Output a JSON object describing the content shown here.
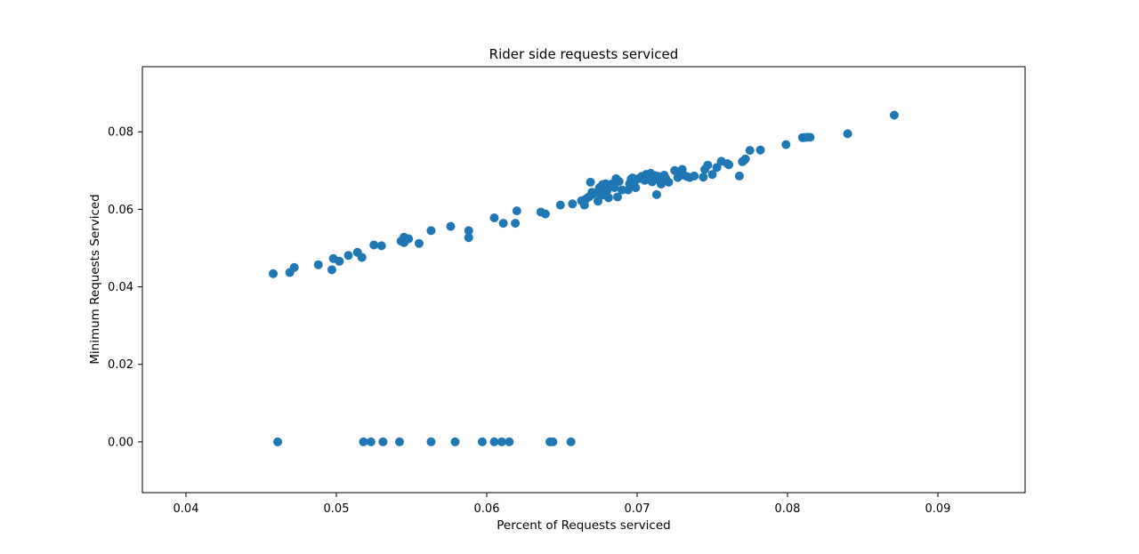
{
  "chart_data": {
    "type": "scatter",
    "title": "Rider side requests serviced",
    "xlabel": "Percent of Requests serviced",
    "ylabel": "Minimum Requests Serviced",
    "xlim": [
      0.0371,
      0.0958
    ],
    "ylim": [
      -0.0131,
      0.0968
    ],
    "xticks": [
      "0.04",
      "0.05",
      "0.06",
      "0.07",
      "0.08",
      "0.09"
    ],
    "yticks": [
      "0.00",
      "0.02",
      "0.04",
      "0.06",
      "0.08"
    ],
    "grid": false,
    "color": "#1f77b4",
    "points": [
      [
        0.0458,
        0.0434
      ],
      [
        0.0469,
        0.0437
      ],
      [
        0.0472,
        0.045
      ],
      [
        0.0488,
        0.0457
      ],
      [
        0.0497,
        0.0444
      ],
      [
        0.0498,
        0.0473
      ],
      [
        0.0502,
        0.0466
      ],
      [
        0.0508,
        0.0481
      ],
      [
        0.0514,
        0.0489
      ],
      [
        0.0517,
        0.0476
      ],
      [
        0.0525,
        0.0508
      ],
      [
        0.053,
        0.0506
      ],
      [
        0.0543,
        0.0518
      ],
      [
        0.0545,
        0.0528
      ],
      [
        0.0545,
        0.0514
      ],
      [
        0.0548,
        0.0524
      ],
      [
        0.0555,
        0.0512
      ],
      [
        0.0563,
        0.0545
      ],
      [
        0.0576,
        0.0556
      ],
      [
        0.0588,
        0.0545
      ],
      [
        0.0588,
        0.0527
      ],
      [
        0.0605,
        0.0578
      ],
      [
        0.0611,
        0.0564
      ],
      [
        0.0619,
        0.0564
      ],
      [
        0.062,
        0.0596
      ],
      [
        0.0636,
        0.0593
      ],
      [
        0.0639,
        0.0588
      ],
      [
        0.0649,
        0.0611
      ],
      [
        0.0657,
        0.0614
      ],
      [
        0.0663,
        0.0622
      ],
      [
        0.0665,
        0.0611
      ],
      [
        0.0666,
        0.0627
      ],
      [
        0.0668,
        0.0632
      ],
      [
        0.0669,
        0.067
      ],
      [
        0.067,
        0.0638
      ],
      [
        0.067,
        0.0644
      ],
      [
        0.0673,
        0.0643
      ],
      [
        0.0674,
        0.0621
      ],
      [
        0.0675,
        0.0656
      ],
      [
        0.0677,
        0.0637
      ],
      [
        0.0677,
        0.0664
      ],
      [
        0.0679,
        0.0666
      ],
      [
        0.068,
        0.0648
      ],
      [
        0.0681,
        0.063
      ],
      [
        0.0683,
        0.0665
      ],
      [
        0.0685,
        0.0656
      ],
      [
        0.0686,
        0.0679
      ],
      [
        0.0687,
        0.0632
      ],
      [
        0.0688,
        0.0672
      ],
      [
        0.069,
        0.065
      ],
      [
        0.0694,
        0.065
      ],
      [
        0.0695,
        0.0666
      ],
      [
        0.0696,
        0.0678
      ],
      [
        0.0697,
        0.066
      ],
      [
        0.0697,
        0.0681
      ],
      [
        0.0698,
        0.067
      ],
      [
        0.0699,
        0.0656
      ],
      [
        0.07,
        0.0678
      ],
      [
        0.0702,
        0.068
      ],
      [
        0.0703,
        0.0685
      ],
      [
        0.0705,
        0.0675
      ],
      [
        0.0706,
        0.069
      ],
      [
        0.0707,
        0.0681
      ],
      [
        0.0708,
        0.0677
      ],
      [
        0.0709,
        0.0693
      ],
      [
        0.071,
        0.0671
      ],
      [
        0.0711,
        0.0683
      ],
      [
        0.0712,
        0.0687
      ],
      [
        0.0713,
        0.0638
      ],
      [
        0.0714,
        0.0685
      ],
      [
        0.0715,
        0.0674
      ],
      [
        0.0716,
        0.0665
      ],
      [
        0.0718,
        0.0688
      ],
      [
        0.0719,
        0.068
      ],
      [
        0.0721,
        0.067
      ],
      [
        0.0725,
        0.07
      ],
      [
        0.0727,
        0.0682
      ],
      [
        0.0728,
        0.0691
      ],
      [
        0.073,
        0.0703
      ],
      [
        0.0731,
        0.0688
      ],
      [
        0.0733,
        0.0685
      ],
      [
        0.0735,
        0.0682
      ],
      [
        0.0738,
        0.0686
      ],
      [
        0.0744,
        0.0683
      ],
      [
        0.0745,
        0.0703
      ],
      [
        0.0747,
        0.0714
      ],
      [
        0.075,
        0.069
      ],
      [
        0.0753,
        0.0708
      ],
      [
        0.0756,
        0.0724
      ],
      [
        0.076,
        0.0718
      ],
      [
        0.0761,
        0.0715
      ],
      [
        0.0768,
        0.0686
      ],
      [
        0.077,
        0.0723
      ],
      [
        0.0771,
        0.0726
      ],
      [
        0.0772,
        0.073
      ],
      [
        0.0775,
        0.0752
      ],
      [
        0.0782,
        0.0753
      ],
      [
        0.0799,
        0.0767
      ],
      [
        0.081,
        0.0785
      ],
      [
        0.0811,
        0.0785
      ],
      [
        0.0813,
        0.0786
      ],
      [
        0.0815,
        0.0786
      ],
      [
        0.084,
        0.0795
      ],
      [
        0.0871,
        0.0843
      ],
      [
        0.0461,
        0.0
      ],
      [
        0.0518,
        0.0
      ],
      [
        0.0523,
        0.0
      ],
      [
        0.0531,
        0.0
      ],
      [
        0.0542,
        0.0
      ],
      [
        0.0563,
        0.0
      ],
      [
        0.0579,
        0.0
      ],
      [
        0.0597,
        0.0
      ],
      [
        0.0605,
        0.0
      ],
      [
        0.061,
        0.0
      ],
      [
        0.0615,
        0.0
      ],
      [
        0.0642,
        0.0
      ],
      [
        0.0644,
        0.0
      ],
      [
        0.0656,
        0.0
      ]
    ]
  }
}
